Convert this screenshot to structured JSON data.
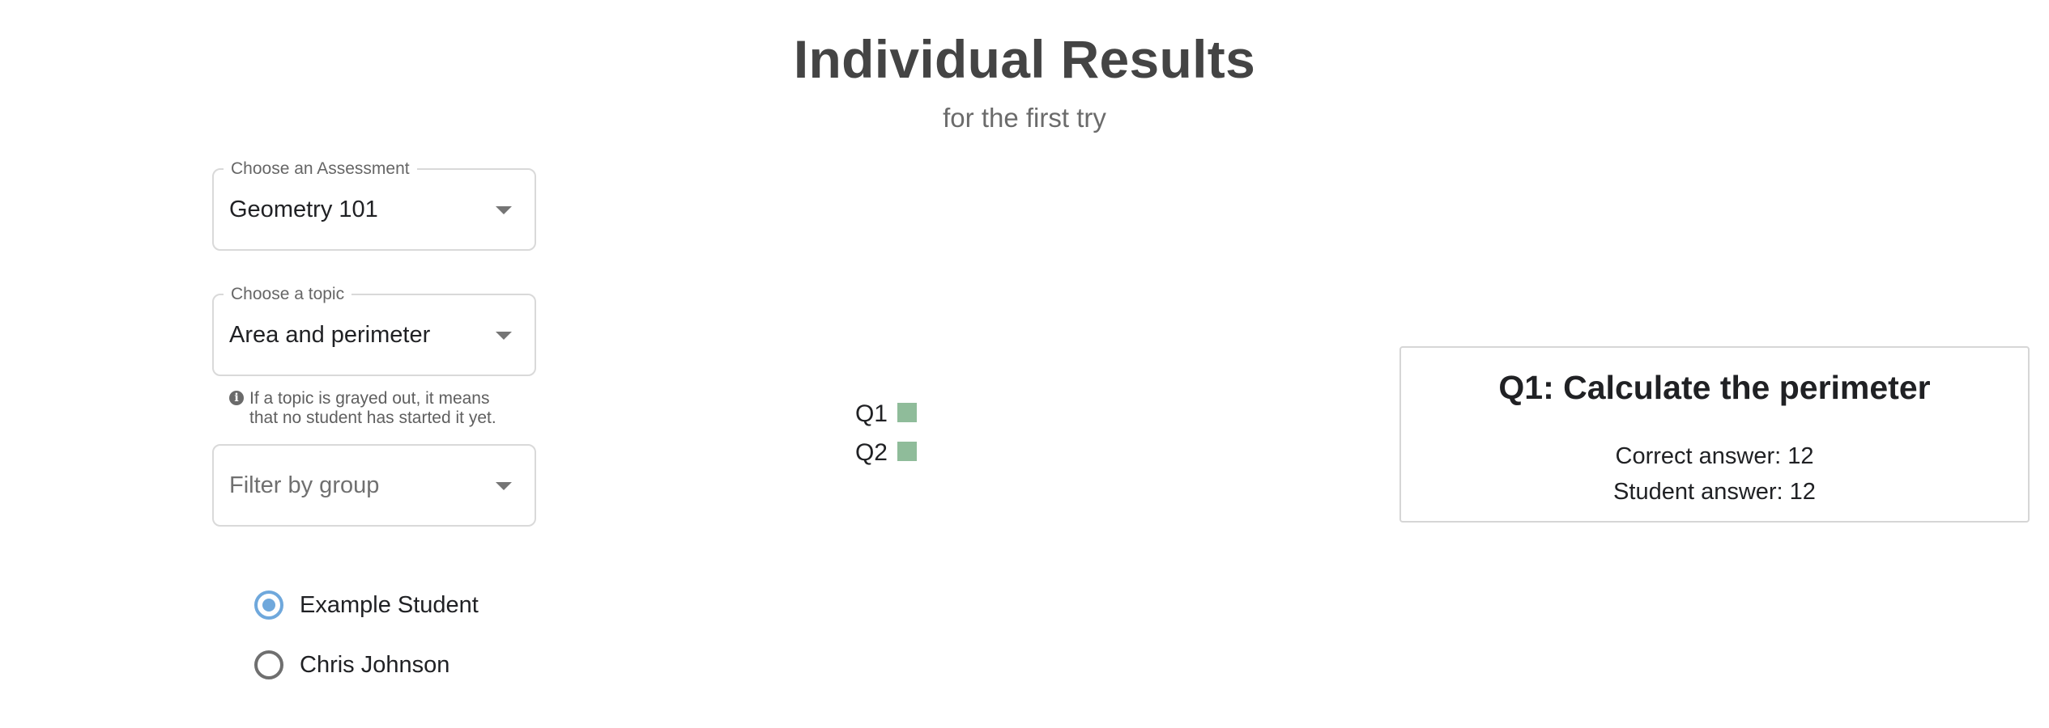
{
  "header": {
    "title": "Individual Results",
    "subtitle": "for the first try"
  },
  "assessment_select": {
    "label": "Choose an Assessment",
    "value": "Geometry 101"
  },
  "topic_select": {
    "label": "Choose a topic",
    "value": "Area and perimeter",
    "helper_line_1": "If a topic is grayed out, it means",
    "helper_line_2": "that no student has started it yet."
  },
  "group_select": {
    "placeholder": "Filter by group"
  },
  "students": [
    {
      "name": "Example Student",
      "selected": true
    },
    {
      "name": "Chris Johnson",
      "selected": false
    }
  ],
  "chart_data": {
    "type": "table",
    "rows": [
      "Q1",
      "Q2"
    ],
    "status": [
      "correct",
      "correct"
    ],
    "colors": {
      "correct": "#8fbc9a"
    }
  },
  "question_detail": {
    "title": "Q1: Calculate the perimeter",
    "correct_answer": "Correct answer: 12",
    "student_answer": "Student answer: 12"
  },
  "icons": {
    "dropdown": "chevron-down-icon",
    "info": "info-icon"
  },
  "colors": {
    "accent": "#6fa8dc",
    "title": "#444444",
    "border": "#d9d9d9",
    "correct": "#8fbc9a"
  }
}
